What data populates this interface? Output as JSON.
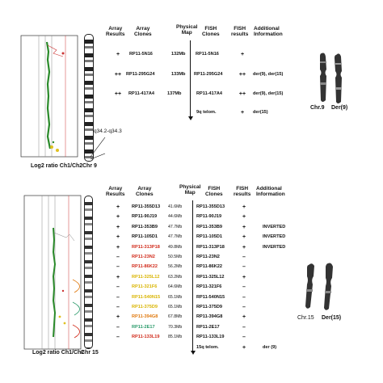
{
  "top": {
    "headers": {
      "array_results": "Array\nResults",
      "array_clones": "Array\nClones",
      "physical_map": "Physical\nMap",
      "fish_clones": "FISH\nClones",
      "fish_results": "FISH\nresults",
      "additional": "Additional\nInformation"
    },
    "rows": [
      {
        "array_result": "+",
        "clone": "RP11-5N16",
        "pos": "132Mb",
        "fish_clone": "RP11-5N16",
        "fish_result": "+",
        "info": ""
      },
      {
        "array_result": "++",
        "clone": "RP11-295G24",
        "pos": "133Mb",
        "fish_clone": "RP11-295G24",
        "fish_result": "++",
        "info": "der(9), der(15)"
      },
      {
        "array_result": "++",
        "clone": "RP11-417A4",
        "pos": "137Mb",
        "fish_clone": "RP11-417A4",
        "fish_result": "++",
        "info": "der(9), der(15)"
      },
      {
        "array_result": "",
        "clone": "",
        "pos": "",
        "fish_clone": "9q telom.",
        "fish_result": "+",
        "info": "der(15)"
      }
    ],
    "band_label": "q34.2-q34.3",
    "xaxis_label": "Log2 ratio Ch1/Ch2",
    "chr_label": "Chr  9",
    "karyo_labels": [
      "Chr.9",
      "Der(9)"
    ]
  },
  "bottom": {
    "headers": {
      "array_results": "Array\nResults",
      "array_clones": "Array\nClones",
      "physical_map": "Physical\nMap",
      "fish_clones": "FISH\nClones",
      "fish_results": "FISH\nresults",
      "additional": "Additional\nInformation"
    },
    "rows": [
      {
        "array_result": "+",
        "clone": "RP11-355D13",
        "color": "#111111",
        "pos": "41.6Mb",
        "fish_clone": "RP11-355D13",
        "fish_result": "+",
        "info": ""
      },
      {
        "array_result": "+",
        "clone": "RP11-90J19",
        "color": "#111111",
        "pos": "44.6Mb",
        "fish_clone": "RP11-90J19",
        "fish_result": "+",
        "info": ""
      },
      {
        "array_result": "+",
        "clone": "RP11-353B9",
        "color": "#111111",
        "pos": "47.7Mb",
        "fish_clone": "RP11-353B9",
        "fish_result": "+",
        "info": "INVERTED"
      },
      {
        "array_result": "+",
        "clone": "RP11-105D1",
        "color": "#111111",
        "pos": "47.7Mb",
        "fish_clone": "RP11-105D1",
        "fish_result": "+",
        "info": "INVERTED"
      },
      {
        "array_result": "+",
        "clone": "RP11-313P18",
        "color": "#d12a1a",
        "pos": "49.8Mb",
        "fish_clone": "RP11-313P18",
        "fish_result": "+",
        "info": "INVERTED"
      },
      {
        "array_result": "–",
        "clone": "RP11-23N2",
        "color": "#d12a1a",
        "pos": "50.5Mb",
        "fish_clone": "RP11-23N2",
        "fish_result": "–",
        "info": ""
      },
      {
        "array_result": "–",
        "clone": "RP11-86K22",
        "color": "#d12a1a",
        "pos": "56.2Mb",
        "fish_clone": "RP11-86K22",
        "fish_result": "–",
        "info": ""
      },
      {
        "array_result": "+",
        "clone": "RP11-325L12",
        "color": "#d9b400",
        "pos": "63.2Mb",
        "fish_clone": "RP11-325L12",
        "fish_result": "+",
        "info": ""
      },
      {
        "array_result": "–",
        "clone": "RP11-321F6",
        "color": "#d9b400",
        "pos": "64.6Mb",
        "fish_clone": "RP11-321F6",
        "fish_result": "–",
        "info": ""
      },
      {
        "array_result": "–",
        "clone": "RP11-540N15",
        "color": "#d9b400",
        "pos": "65.1Mb",
        "fish_clone": "RP11-540N15",
        "fish_result": "–",
        "info": ""
      },
      {
        "array_result": "–",
        "clone": "RP11-375D9",
        "color": "#d9b400",
        "pos": "65.1Mb",
        "fish_clone": "RP11-375D9",
        "fish_result": "–",
        "info": ""
      },
      {
        "array_result": "+",
        "clone": "RP11-394G8",
        "color": "#e07a10",
        "pos": "67.8Mb",
        "fish_clone": "RP11-394G8",
        "fish_result": "+",
        "info": ""
      },
      {
        "array_result": "–",
        "clone": "RP11-2E17",
        "color": "#2a9a6a",
        "pos": "70.3Mb",
        "fish_clone": "RP11-2E17",
        "fish_result": "–",
        "info": ""
      },
      {
        "array_result": "–",
        "clone": "RP11-133L19",
        "color": "#d12a1a",
        "pos": "85.1Mb",
        "fish_clone": "RP11-133L19",
        "fish_result": "–",
        "info": ""
      },
      {
        "array_result": "",
        "clone": "",
        "color": "#111111",
        "pos": "",
        "fish_clone": "15q telom.",
        "fish_result": "+",
        "info": "der (9)"
      }
    ],
    "xaxis_label": "Log2 ratio Ch1/Ch2",
    "chr_label": "Chr 15",
    "karyo_labels": [
      "Chr.15",
      "Der(15)"
    ]
  }
}
